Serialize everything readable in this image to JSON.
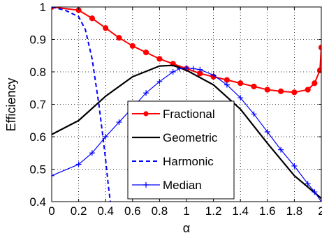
{
  "chart_data": {
    "type": "line",
    "xlabel": "α",
    "ylabel": "Efficiency",
    "xlim": [
      0,
      2
    ],
    "ylim": [
      0.4,
      1
    ],
    "xticks": [
      "0",
      "0.2",
      "0.4",
      "0.6",
      "0.8",
      "1",
      "1.2",
      "1.4",
      "1.6",
      "1.8",
      "2"
    ],
    "yticks": [
      "0.4",
      "0.5",
      "0.6",
      "0.7",
      "0.8",
      "0.9",
      "1"
    ],
    "grid": true,
    "legend_position": "bottom-center",
    "series": [
      {
        "name": "Fractional",
        "color": "#ff0000",
        "style": "solid",
        "marker": "dot",
        "x": [
          0,
          0.2,
          0.3,
          0.4,
          0.5,
          0.6,
          0.7,
          0.8,
          0.9,
          1.0,
          1.1,
          1.2,
          1.3,
          1.4,
          1.5,
          1.6,
          1.7,
          1.8,
          1.9,
          1.95,
          1.99,
          2.0
        ],
        "y": [
          1.0,
          0.99,
          0.965,
          0.935,
          0.905,
          0.88,
          0.86,
          0.84,
          0.825,
          0.81,
          0.795,
          0.785,
          0.775,
          0.765,
          0.755,
          0.745,
          0.74,
          0.737,
          0.745,
          0.765,
          0.805,
          0.875
        ]
      },
      {
        "name": "Geometric",
        "color": "#000000",
        "style": "solid",
        "marker": "none",
        "x": [
          0,
          0.2,
          0.4,
          0.6,
          0.8,
          0.9,
          1.0,
          1.2,
          1.4,
          1.6,
          1.8,
          2.0
        ],
        "y": [
          0.607,
          0.65,
          0.725,
          0.785,
          0.818,
          0.82,
          0.805,
          0.76,
          0.685,
          0.58,
          0.48,
          0.41
        ]
      },
      {
        "name": "Harmonic",
        "color": "#0000ff",
        "style": "dashed",
        "marker": "none",
        "x": [
          0,
          0.1,
          0.2,
          0.25,
          0.3,
          0.35,
          0.38,
          0.4,
          0.42,
          0.45
        ],
        "y": [
          1.0,
          0.99,
          0.97,
          0.93,
          0.84,
          0.7,
          0.6,
          0.53,
          0.45,
          0.35
        ]
      },
      {
        "name": "Median",
        "color": "#0000ff",
        "style": "solid",
        "marker": "plus",
        "x": [
          0,
          0.2,
          0.3,
          0.4,
          0.5,
          0.6,
          0.7,
          0.8,
          0.9,
          0.95,
          1.0,
          1.05,
          1.1,
          1.2,
          1.3,
          1.4,
          1.5,
          1.6,
          1.7,
          1.8,
          1.9,
          1.95,
          2.0
        ],
        "y": [
          0.48,
          0.515,
          0.55,
          0.6,
          0.645,
          0.69,
          0.735,
          0.77,
          0.8,
          0.81,
          0.812,
          0.81,
          0.807,
          0.79,
          0.76,
          0.72,
          0.67,
          0.615,
          0.56,
          0.51,
          0.455,
          0.43,
          0.4
        ]
      }
    ]
  }
}
